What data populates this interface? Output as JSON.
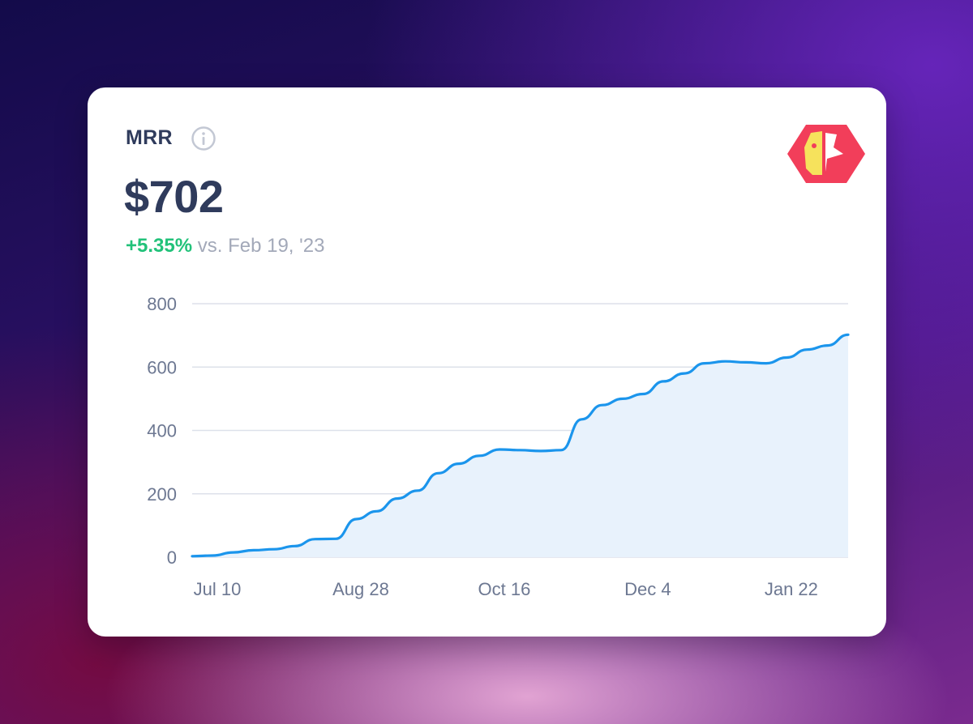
{
  "card": {
    "title": "MRR",
    "value": "$702",
    "delta_percent": "+5.35%",
    "delta_comparison": "vs. Feb 19, '23"
  },
  "colors": {
    "line": "#1b95ec",
    "area": "#e8f2fc",
    "grid": "#dde1ea",
    "positive": "#22c27a",
    "logo_hex": "#f23e5a",
    "logo_face": "#f6e25c"
  },
  "icons": [
    "info-icon",
    "parrot-logo-icon"
  ],
  "chart_data": {
    "type": "area",
    "x_tick_labels": [
      "Jul 10",
      "Aug 28",
      "Oct 16",
      "Dec 4",
      "Jan 22"
    ],
    "y_ticks": [
      0,
      200,
      400,
      600,
      800
    ],
    "ylim": [
      0,
      800
    ],
    "xlim": [
      "2022-07-10",
      "2023-02-19"
    ],
    "grid": true,
    "series": [
      {
        "x": [
          "2022-07-10",
          "2022-07-17",
          "2022-07-24",
          "2022-07-31",
          "2022-08-07",
          "2022-08-14",
          "2022-08-21",
          "2022-08-28",
          "2022-09-04",
          "2022-09-11",
          "2022-09-18",
          "2022-09-25",
          "2022-10-02",
          "2022-10-09",
          "2022-10-16",
          "2022-10-23",
          "2022-10-30",
          "2022-11-06",
          "2022-11-13",
          "2022-11-20",
          "2022-11-27",
          "2022-12-04",
          "2022-12-11",
          "2022-12-18",
          "2022-12-25",
          "2023-01-01",
          "2023-01-08",
          "2023-01-15",
          "2023-01-22",
          "2023-01-29",
          "2023-02-05",
          "2023-02-12",
          "2023-02-19"
        ],
        "y": [
          3,
          5,
          15,
          22,
          25,
          35,
          57,
          58,
          120,
          145,
          185,
          210,
          265,
          295,
          320,
          340,
          338,
          335,
          338,
          435,
          480,
          500,
          515,
          555,
          580,
          612,
          618,
          615,
          612,
          630,
          655,
          668,
          702
        ]
      }
    ]
  }
}
